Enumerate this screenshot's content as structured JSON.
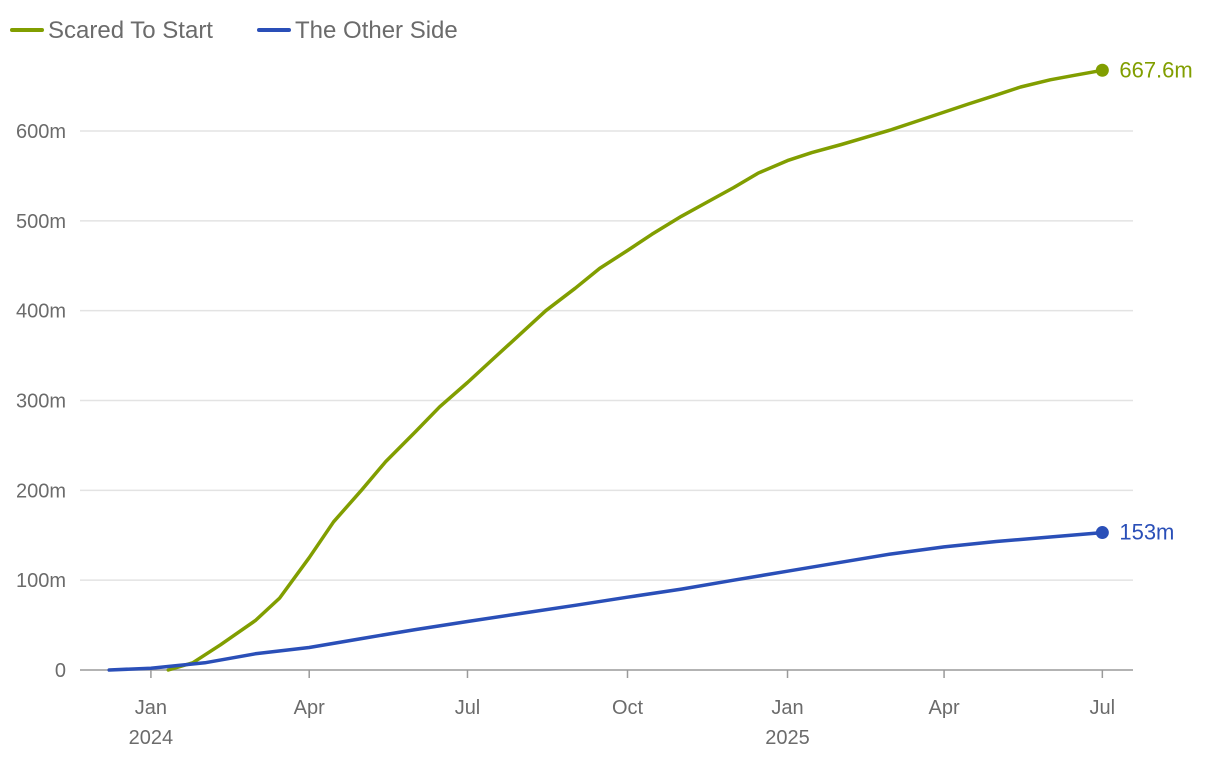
{
  "chart_data": {
    "type": "line",
    "ylim": [
      0,
      700
    ],
    "y_ticks": [
      {
        "value": 0,
        "label": "0"
      },
      {
        "value": 100,
        "label": "100m"
      },
      {
        "value": 200,
        "label": "200m"
      },
      {
        "value": 300,
        "label": "300m"
      },
      {
        "value": 400,
        "label": "400m"
      },
      {
        "value": 500,
        "label": "500m"
      },
      {
        "value": 600,
        "label": "600m"
      }
    ],
    "x_range": [
      "2023-12-01",
      "2025-07-10"
    ],
    "x_ticks": [
      {
        "date": "2024-01-01",
        "label": "Jan",
        "sublabel": "2024"
      },
      {
        "date": "2024-04-01",
        "label": "Apr",
        "sublabel": ""
      },
      {
        "date": "2024-07-01",
        "label": "Jul",
        "sublabel": ""
      },
      {
        "date": "2024-10-01",
        "label": "Oct",
        "sublabel": ""
      },
      {
        "date": "2025-01-01",
        "label": "Jan",
        "sublabel": "2025"
      },
      {
        "date": "2025-04-01",
        "label": "Apr",
        "sublabel": ""
      },
      {
        "date": "2025-07-01",
        "label": "Jul",
        "sublabel": ""
      }
    ],
    "grid": true,
    "legend_position": "top-left",
    "series": [
      {
        "name": "Scared To Start",
        "color": "#819e00",
        "end_label": "667.6m",
        "points": [
          {
            "date": "2024-01-11",
            "value": 0
          },
          {
            "date": "2024-01-25",
            "value": 8
          },
          {
            "date": "2024-02-10",
            "value": 28
          },
          {
            "date": "2024-03-01",
            "value": 55
          },
          {
            "date": "2024-03-15",
            "value": 80
          },
          {
            "date": "2024-04-01",
            "value": 125
          },
          {
            "date": "2024-04-15",
            "value": 165
          },
          {
            "date": "2024-05-01",
            "value": 200
          },
          {
            "date": "2024-05-15",
            "value": 232
          },
          {
            "date": "2024-06-01",
            "value": 265
          },
          {
            "date": "2024-06-15",
            "value": 293
          },
          {
            "date": "2024-07-01",
            "value": 320
          },
          {
            "date": "2024-07-15",
            "value": 345
          },
          {
            "date": "2024-08-01",
            "value": 375
          },
          {
            "date": "2024-08-15",
            "value": 400
          },
          {
            "date": "2024-09-01",
            "value": 425
          },
          {
            "date": "2024-09-15",
            "value": 447
          },
          {
            "date": "2024-10-01",
            "value": 467
          },
          {
            "date": "2024-10-15",
            "value": 485
          },
          {
            "date": "2024-11-01",
            "value": 505
          },
          {
            "date": "2024-11-15",
            "value": 520
          },
          {
            "date": "2024-12-01",
            "value": 537
          },
          {
            "date": "2024-12-15",
            "value": 553
          },
          {
            "date": "2025-01-01",
            "value": 567
          },
          {
            "date": "2025-01-15",
            "value": 576
          },
          {
            "date": "2025-02-01",
            "value": 585
          },
          {
            "date": "2025-02-15",
            "value": 593
          },
          {
            "date": "2025-03-01",
            "value": 601
          },
          {
            "date": "2025-03-15",
            "value": 610
          },
          {
            "date": "2025-04-01",
            "value": 621
          },
          {
            "date": "2025-04-15",
            "value": 630
          },
          {
            "date": "2025-05-01",
            "value": 640
          },
          {
            "date": "2025-05-15",
            "value": 649
          },
          {
            "date": "2025-06-01",
            "value": 657
          },
          {
            "date": "2025-06-15",
            "value": 662
          },
          {
            "date": "2025-07-01",
            "value": 667.6
          }
        ]
      },
      {
        "name": "The Other Side",
        "color": "#2a4fb8",
        "end_label": "153m",
        "points": [
          {
            "date": "2023-12-08",
            "value": 0
          },
          {
            "date": "2024-01-01",
            "value": 2
          },
          {
            "date": "2024-02-01",
            "value": 8
          },
          {
            "date": "2024-03-01",
            "value": 18
          },
          {
            "date": "2024-04-01",
            "value": 25
          },
          {
            "date": "2024-05-01",
            "value": 35
          },
          {
            "date": "2024-06-01",
            "value": 45
          },
          {
            "date": "2024-07-01",
            "value": 54
          },
          {
            "date": "2024-08-01",
            "value": 63
          },
          {
            "date": "2024-09-01",
            "value": 72
          },
          {
            "date": "2024-10-01",
            "value": 81
          },
          {
            "date": "2024-11-01",
            "value": 90
          },
          {
            "date": "2024-12-01",
            "value": 100
          },
          {
            "date": "2025-01-01",
            "value": 110
          },
          {
            "date": "2025-02-01",
            "value": 120
          },
          {
            "date": "2025-03-01",
            "value": 129
          },
          {
            "date": "2025-04-01",
            "value": 137
          },
          {
            "date": "2025-05-01",
            "value": 143
          },
          {
            "date": "2025-06-01",
            "value": 148
          },
          {
            "date": "2025-07-01",
            "value": 153
          }
        ]
      }
    ]
  }
}
